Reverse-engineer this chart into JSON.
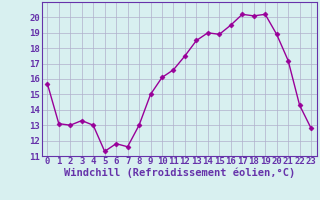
{
  "x": [
    0,
    1,
    2,
    3,
    4,
    5,
    6,
    7,
    8,
    9,
    10,
    11,
    12,
    13,
    14,
    15,
    16,
    17,
    18,
    19,
    20,
    21,
    22,
    23
  ],
  "y": [
    15.7,
    13.1,
    13.0,
    13.3,
    13.0,
    11.3,
    11.8,
    11.6,
    13.0,
    15.0,
    16.1,
    16.6,
    17.5,
    18.5,
    19.0,
    18.9,
    19.5,
    20.2,
    20.1,
    20.2,
    18.9,
    17.2,
    14.3,
    12.8
  ],
  "line_color": "#990099",
  "marker": "D",
  "markersize": 2.5,
  "linewidth": 1.0,
  "xlabel": "Windchill (Refroidissement éolien,°C)",
  "ylim": [
    11,
    21
  ],
  "xlim": [
    -0.5,
    23.5
  ],
  "yticks": [
    11,
    12,
    13,
    14,
    15,
    16,
    17,
    18,
    19,
    20
  ],
  "xticks": [
    0,
    1,
    2,
    3,
    4,
    5,
    6,
    7,
    8,
    9,
    10,
    11,
    12,
    13,
    14,
    15,
    16,
    17,
    18,
    19,
    20,
    21,
    22,
    23
  ],
  "xtick_labels": [
    "0",
    "1",
    "2",
    "3",
    "4",
    "5",
    "6",
    "7",
    "8",
    "9",
    "10",
    "11",
    "12",
    "13",
    "14",
    "15",
    "16",
    "17",
    "18",
    "19",
    "20",
    "21",
    "22",
    "23"
  ],
  "bg_color": "#d8f0f0",
  "grid_color": "#b0b0cc",
  "spine_color": "#6633aa",
  "tick_color": "#6633aa",
  "xlabel_color": "#6633aa",
  "tick_fontsize": 6.5,
  "xlabel_fontsize": 7.5
}
